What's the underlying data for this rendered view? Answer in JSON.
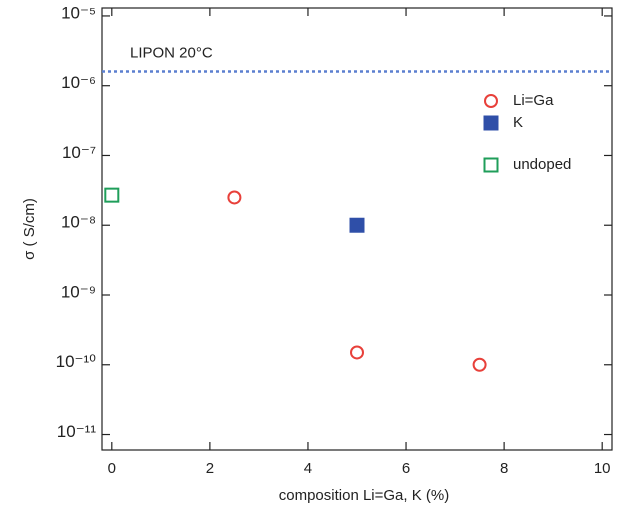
{
  "chart_data": {
    "type": "scatter",
    "x_label": "composition Li=Ga, K (%)",
    "y_label": "σ ( S/cm)",
    "xlim": [
      -0.2,
      10.2
    ],
    "xticks": [
      0,
      2,
      4,
      6,
      8,
      10
    ],
    "ylim": [
      6e-12,
      1.3e-05
    ],
    "log_y": true,
    "yticks": [
      {
        "value": 1e-11,
        "label": "10⁻¹¹"
      },
      {
        "value": 1e-10,
        "label": "10⁻¹⁰"
      },
      {
        "value": 1e-09,
        "label": "10⁻⁹"
      },
      {
        "value": 1e-08,
        "label": "10⁻⁸"
      },
      {
        "value": 1e-07,
        "label": "10⁻⁷"
      },
      {
        "value": 1e-06,
        "label": "10⁻⁶"
      },
      {
        "value": 1e-05,
        "label": "10⁻⁵"
      }
    ],
    "reference_line": {
      "label": "LIPON 20°C",
      "value": 1.6e-06,
      "color": "#5b7fcf"
    },
    "legend": "upper-right",
    "series": [
      {
        "name": "Li=Ga",
        "color": "#e8403a",
        "marker": "circle-open",
        "x": [
          2.5,
          5,
          7.5
        ],
        "values": [
          2.5e-08,
          1.5e-10,
          1e-10
        ]
      },
      {
        "name": "K",
        "color": "#2f4fa8",
        "marker": "square-filled",
        "x": [
          5
        ],
        "values": [
          1e-08
        ]
      },
      {
        "name": "undoped",
        "color": "#1f9e5a",
        "marker": "square-open",
        "x": [
          0
        ],
        "values": [
          2.7e-08
        ]
      }
    ]
  }
}
